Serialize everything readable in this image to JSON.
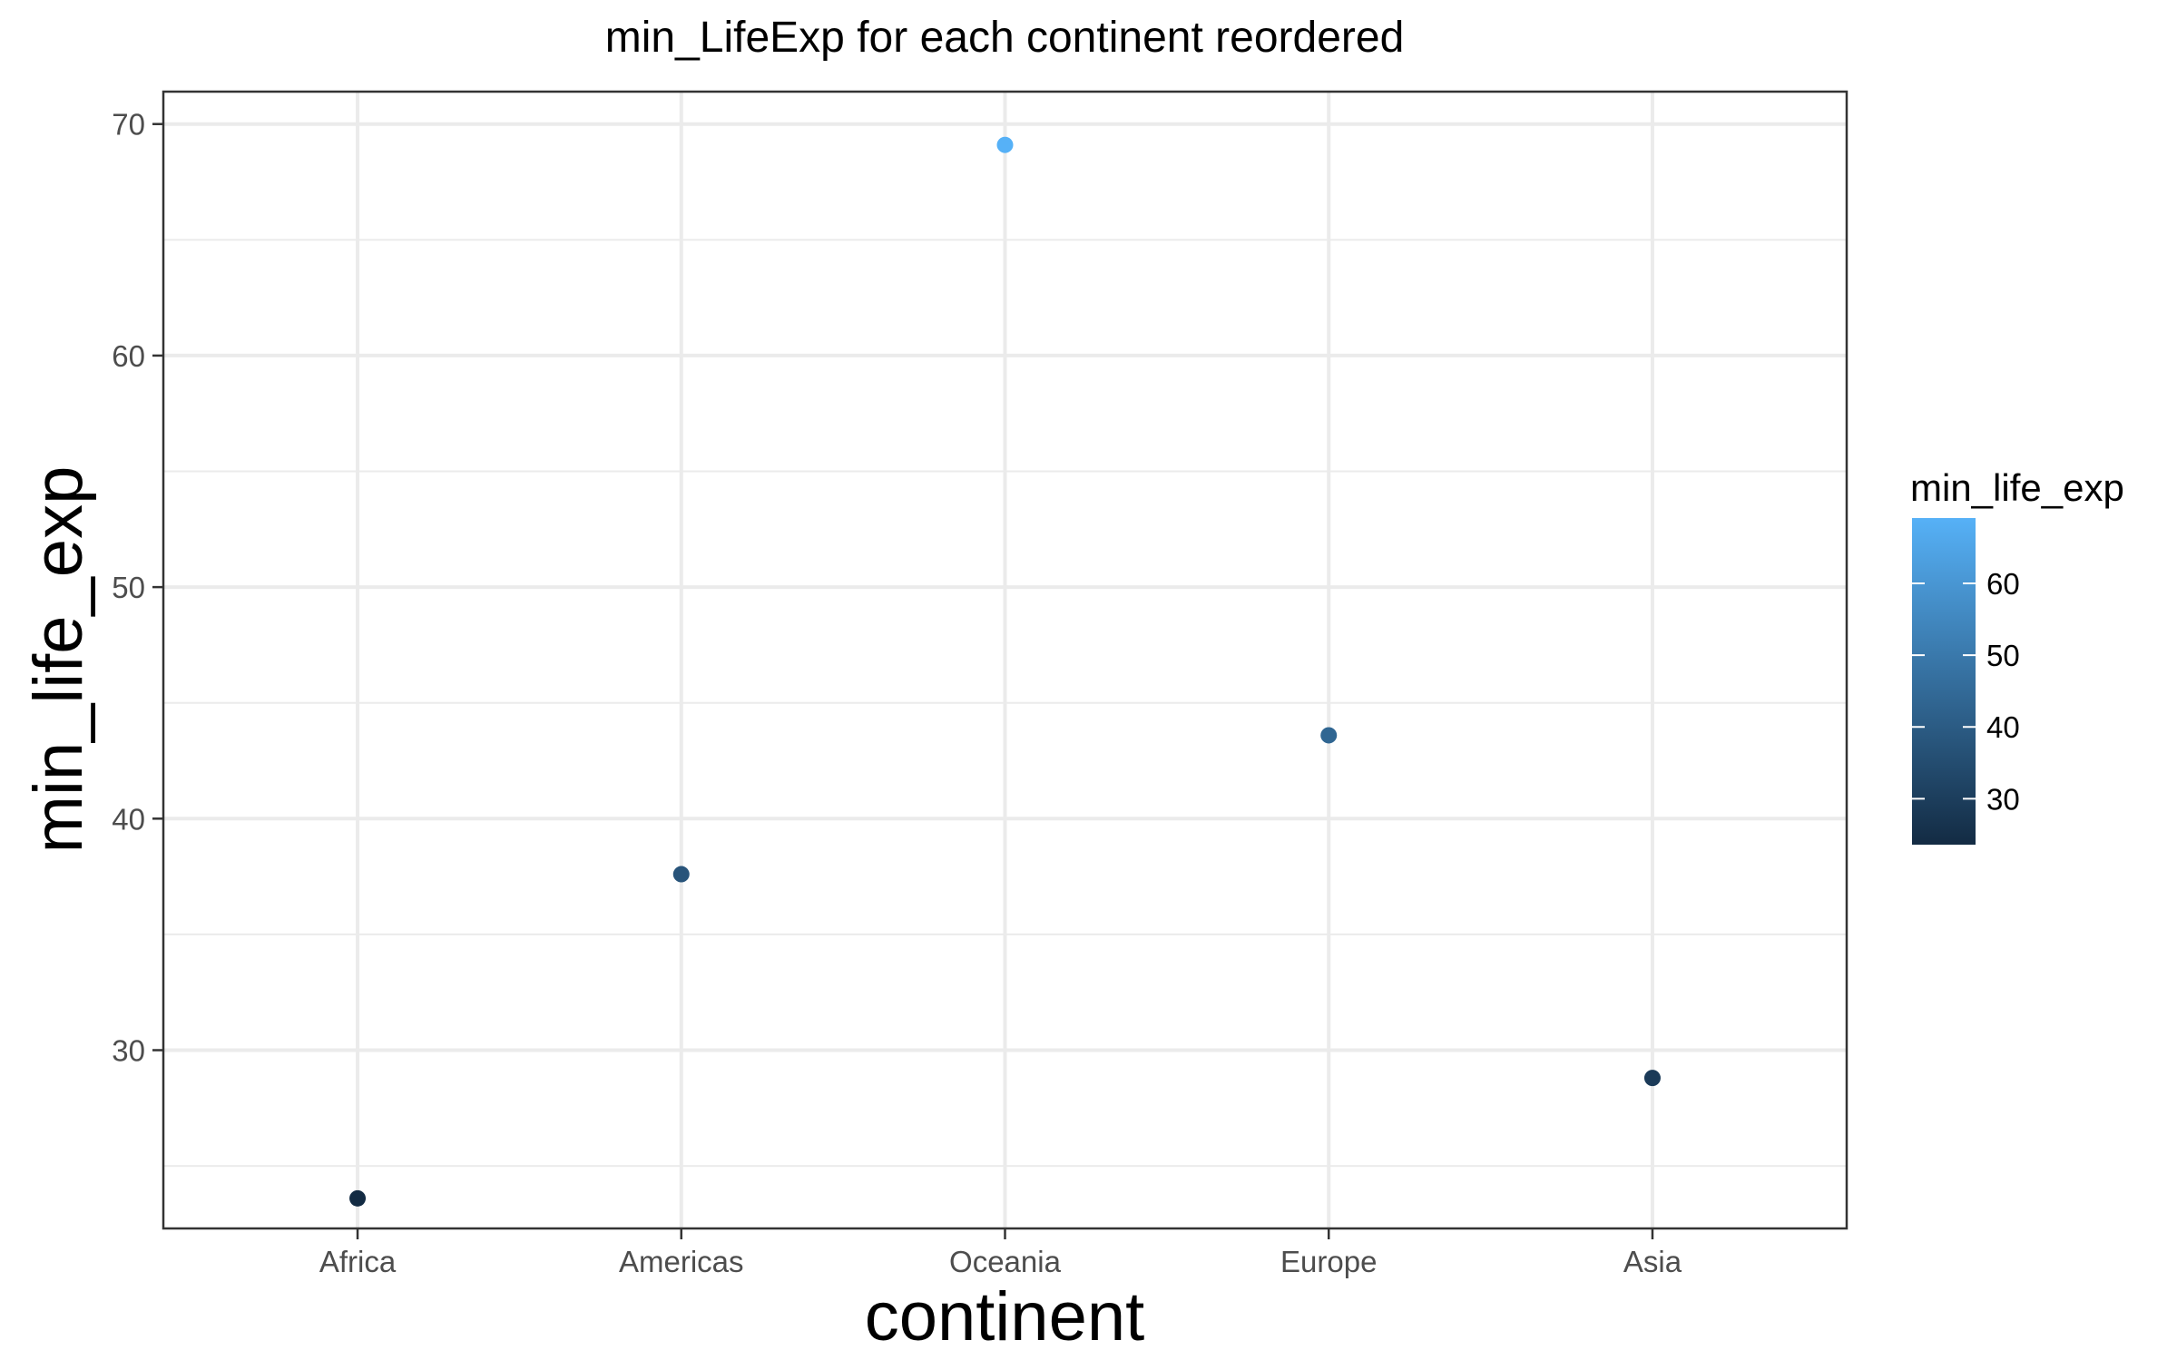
{
  "chart_data": {
    "type": "scatter",
    "title": "min_LifeExp for each continent reordered",
    "xlabel": "continent",
    "ylabel": "min_life_exp",
    "categories": [
      "Africa",
      "Americas",
      "Oceania",
      "Europe",
      "Asia"
    ],
    "values": [
      23.6,
      37.6,
      69.1,
      43.6,
      28.8
    ],
    "ylim": [
      22.3,
      71.4
    ],
    "yticks": [
      30,
      40,
      50,
      60,
      70
    ],
    "grid": true,
    "legend": {
      "title": "min_life_exp",
      "placement": "right",
      "ticks": [
        30,
        40,
        50,
        60
      ],
      "range": [
        23.6,
        69.1
      ],
      "color_low": "#132b43",
      "color_high": "#56b1f7"
    }
  }
}
